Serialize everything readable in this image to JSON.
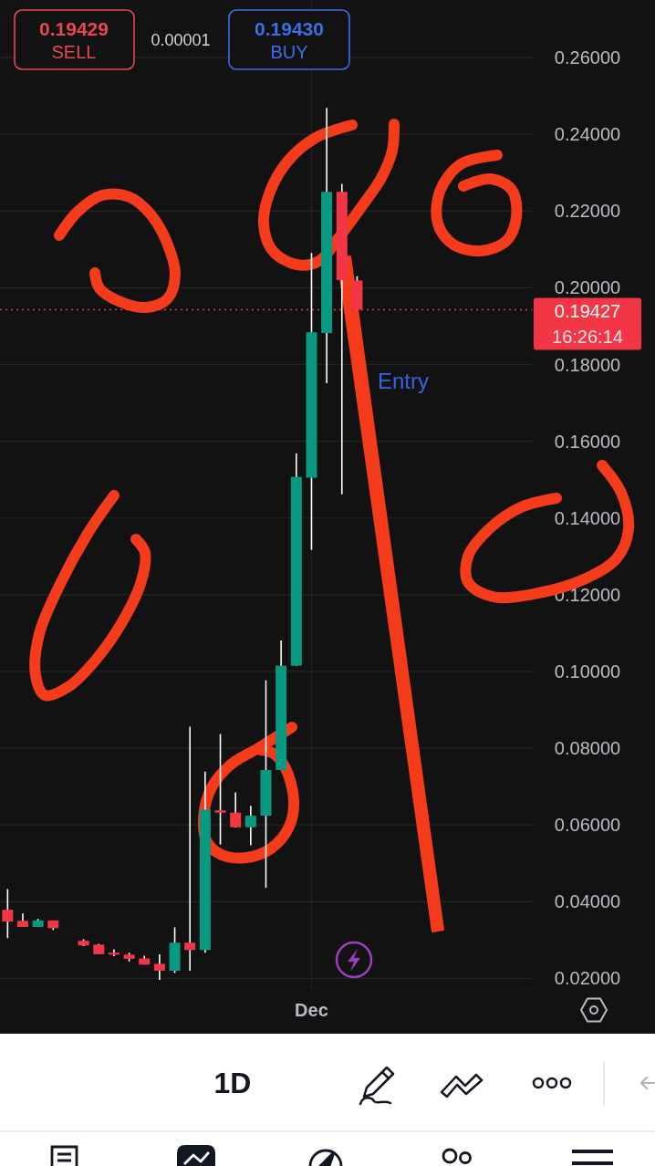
{
  "chart_data": {
    "type": "candlestick",
    "categories": [
      null,
      null,
      null,
      null,
      null,
      null,
      null,
      null,
      null,
      null,
      null,
      null,
      null,
      null,
      null,
      null,
      null,
      null,
      null,
      null,
      "Dec",
      null,
      null,
      null,
      null,
      null,
      null,
      null,
      null,
      null,
      null,
      null,
      null,
      null,
      null
    ],
    "ohlc": [
      [
        0.0379,
        0.0433,
        0.0305,
        0.0348
      ],
      [
        0.035,
        0.0369,
        0.0334,
        0.0334
      ],
      [
        0.0334,
        0.0355,
        0.0334,
        0.0351
      ],
      [
        0.0351,
        0.0351,
        0.0326,
        0.0331
      ],
      null,
      [
        0.0298,
        0.0302,
        0.0284,
        0.0286
      ],
      [
        0.0288,
        0.029,
        0.0263,
        0.0263
      ],
      [
        0.0267,
        0.0276,
        0.0258,
        0.0262
      ],
      [
        0.0262,
        0.0267,
        0.0244,
        0.0251
      ],
      [
        0.0252,
        0.0259,
        0.0236,
        0.0236
      ],
      [
        0.0238,
        0.0263,
        0.0196,
        0.022
      ],
      [
        0.022,
        0.0333,
        0.0214,
        0.0293
      ],
      [
        0.0293,
        0.0856,
        0.022,
        0.0274
      ],
      [
        0.0274,
        0.0739,
        0.0267,
        0.064
      ],
      [
        0.0638,
        0.0837,
        0.0549,
        0.0632
      ],
      [
        0.0632,
        0.0685,
        0.0593,
        0.0594
      ],
      [
        0.0594,
        0.065,
        0.0547,
        0.0624
      ],
      [
        0.0624,
        0.0977,
        0.0436,
        0.0743
      ],
      [
        0.0743,
        0.1081,
        0.0743,
        0.1015
      ],
      [
        0.1015,
        0.1568,
        0.1015,
        0.1507
      ],
      [
        0.1505,
        0.2091,
        0.1317,
        0.1884
      ],
      [
        0.1882,
        0.2469,
        0.1751,
        0.225
      ],
      [
        0.225,
        0.2271,
        0.1462,
        0.202
      ],
      [
        0.2019,
        0.203,
        0.19427,
        0.19427
      ],
      null,
      null,
      null,
      null,
      null,
      null,
      null,
      null,
      null,
      null,
      null
    ],
    "ylim": [
      0.017,
      0.275
    ],
    "yticks": [
      {
        "value": 0.02,
        "label": "0.02000"
      },
      {
        "value": 0.04,
        "label": "0.04000"
      },
      {
        "value": 0.06,
        "label": "0.06000"
      },
      {
        "value": 0.08,
        "label": "0.08000"
      },
      {
        "value": 0.1,
        "label": "0.10000"
      },
      {
        "value": 0.12,
        "label": "0.12000"
      },
      {
        "value": 0.14,
        "label": "0.14000"
      },
      {
        "value": 0.16,
        "label": "0.16000"
      },
      {
        "value": 0.18,
        "label": "0.18000"
      },
      {
        "value": 0.2,
        "label": "0.20000"
      },
      {
        "value": 0.22,
        "label": "0.22000"
      },
      {
        "value": 0.24,
        "label": "0.24000"
      },
      {
        "value": 0.26,
        "label": "0.26000"
      }
    ],
    "grid": true,
    "ref_lines": [
      {
        "axis": "y",
        "value": 0.19427,
        "label": "0.19427",
        "color": "#f23645",
        "line_style": "dotted"
      }
    ],
    "annotations": [
      "0.19429",
      "SELL",
      "0.00001",
      "0.19430",
      "BUY",
      "16:26:14",
      "Entry",
      "1D"
    ]
  }
}
